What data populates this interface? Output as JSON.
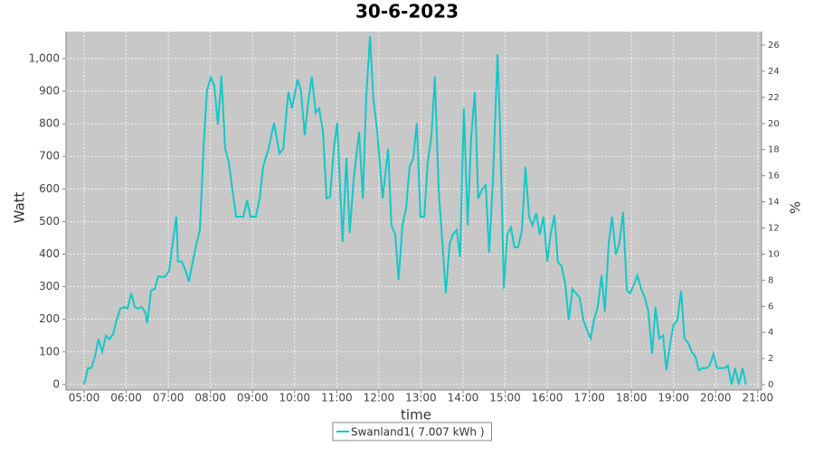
{
  "chart_data": {
    "type": "line",
    "title": "30-6-2023",
    "xlabel": "time",
    "ylabel": "Watt",
    "y2label": "%",
    "grid": true,
    "legend": "bottom",
    "xlim": [
      4.57,
      21.09
    ],
    "xticks": [
      {
        "value": 5,
        "label": "05:00"
      },
      {
        "value": 6,
        "label": "06:00"
      },
      {
        "value": 7,
        "label": "07:00"
      },
      {
        "value": 8,
        "label": "08:00"
      },
      {
        "value": 9,
        "label": "09:00"
      },
      {
        "value": 10,
        "label": "10:00"
      },
      {
        "value": 11,
        "label": "11:00"
      },
      {
        "value": 12,
        "label": "12:00"
      },
      {
        "value": 13,
        "label": "13:00"
      },
      {
        "value": 14,
        "label": "14:00"
      },
      {
        "value": 15,
        "label": "15:00"
      },
      {
        "value": 16,
        "label": "16:00"
      },
      {
        "value": 17,
        "label": "17:00"
      },
      {
        "value": 18,
        "label": "18:00"
      },
      {
        "value": 19,
        "label": "19:00"
      },
      {
        "value": 20,
        "label": "20:00"
      },
      {
        "value": 21,
        "label": "21:00"
      }
    ],
    "ylim": [
      -17,
      1083
    ],
    "yticks": [
      0,
      100,
      200,
      300,
      400,
      500,
      600,
      700,
      800,
      900,
      {
        "value": 1000,
        "label": "1,000"
      }
    ],
    "y2lim": [
      -0.41,
      27.04
    ],
    "y2ticks": [
      0,
      2,
      4,
      6,
      8,
      10,
      12,
      14,
      16,
      18,
      20,
      22,
      24,
      26
    ],
    "x": [
      5.0,
      5.09,
      5.17,
      5.26,
      5.34,
      5.43,
      5.52,
      5.6,
      5.69,
      5.77,
      5.86,
      5.95,
      6.03,
      6.12,
      6.2,
      6.29,
      6.37,
      6.46,
      6.5,
      6.59,
      6.68,
      6.76,
      6.85,
      6.93,
      7.02,
      7.1,
      7.19,
      7.23,
      7.32,
      7.41,
      7.49,
      7.58,
      7.66,
      7.75,
      7.84,
      7.92,
      8.01,
      8.09,
      8.18,
      8.26,
      8.35,
      8.44,
      8.52,
      8.61,
      8.69,
      8.78,
      8.87,
      8.95,
      9.08,
      9.17,
      9.25,
      9.38,
      9.51,
      9.64,
      9.73,
      9.85,
      9.94,
      10.07,
      10.15,
      10.24,
      10.33,
      10.41,
      10.5,
      10.58,
      10.67,
      10.76,
      10.84,
      10.93,
      11.01,
      11.14,
      11.23,
      11.31,
      11.4,
      11.53,
      11.62,
      11.7,
      11.79,
      11.87,
      11.96,
      12.09,
      12.22,
      12.3,
      12.39,
      12.47,
      12.56,
      12.65,
      12.73,
      12.82,
      12.9,
      12.99,
      13.08,
      13.16,
      13.25,
      13.33,
      13.42,
      13.51,
      13.59,
      13.68,
      13.76,
      13.85,
      13.93,
      14.02,
      14.11,
      14.19,
      14.28,
      14.36,
      14.45,
      14.54,
      14.62,
      14.71,
      14.82,
      14.88,
      14.97,
      15.05,
      15.14,
      15.22,
      15.31,
      15.4,
      15.48,
      15.57,
      15.65,
      15.74,
      15.82,
      15.91,
      16.0,
      16.08,
      16.17,
      16.25,
      16.34,
      16.43,
      16.51,
      16.6,
      16.68,
      16.77,
      16.86,
      16.94,
      17.03,
      17.11,
      17.2,
      17.29,
      17.37,
      17.46,
      17.54,
      17.63,
      17.71,
      17.8,
      17.89,
      17.97,
      18.06,
      18.14,
      18.23,
      18.32,
      18.4,
      18.49,
      18.57,
      18.66,
      18.75,
      18.83,
      18.92,
      19.0,
      19.09,
      19.18,
      19.26,
      19.35,
      19.43,
      19.52,
      19.6,
      19.69,
      19.78,
      19.86,
      19.95,
      20.03,
      20.12,
      20.21,
      20.29,
      20.38,
      20.46,
      20.55,
      20.64,
      20.72
    ],
    "series": [
      {
        "name": "Swanland1( 7.007 kWh )",
        "color": "#14c8c8",
        "values": [
          0,
          50,
          50,
          86,
          139,
          100,
          150,
          139,
          155,
          197,
          233,
          238,
          233,
          280,
          238,
          233,
          238,
          219,
          188,
          288,
          294,
          332,
          330,
          332,
          349,
          432,
          515,
          377,
          377,
          349,
          316,
          377,
          427,
          474,
          737,
          903,
          942,
          917,
          798,
          947,
          723,
          681,
          598,
          515,
          515,
          515,
          565,
          515,
          515,
          571,
          668,
          723,
          803,
          709,
          723,
          898,
          848,
          936,
          903,
          765,
          875,
          945,
          834,
          848,
          778,
          571,
          576,
          723,
          803,
          438,
          695,
          465,
          626,
          776,
          571,
          881,
          1069,
          875,
          778,
          571,
          723,
          488,
          460,
          321,
          488,
          543,
          668,
          695,
          803,
          515,
          515,
          681,
          765,
          945,
          598,
          432,
          280,
          432,
          460,
          474,
          391,
          848,
          488,
          750,
          898,
          571,
          598,
          612,
          405,
          626,
          1014,
          790,
          294,
          460,
          482,
          421,
          421,
          474,
          668,
          515,
          488,
          526,
          460,
          515,
          377,
          460,
          520,
          377,
          363,
          307,
          197,
          294,
          280,
          266,
          197,
          169,
          141,
          197,
          238,
          335,
          224,
          432,
          515,
          399,
          432,
          529,
          288,
          280,
          307,
          335,
          294,
          266,
          224,
          94,
          238,
          141,
          150,
          44,
          127,
          183,
          197,
          288,
          141,
          127,
          100,
          86,
          44,
          50,
          50,
          58,
          94,
          50,
          50,
          50,
          58,
          0,
          50,
          0,
          50,
          0
        ]
      }
    ]
  }
}
